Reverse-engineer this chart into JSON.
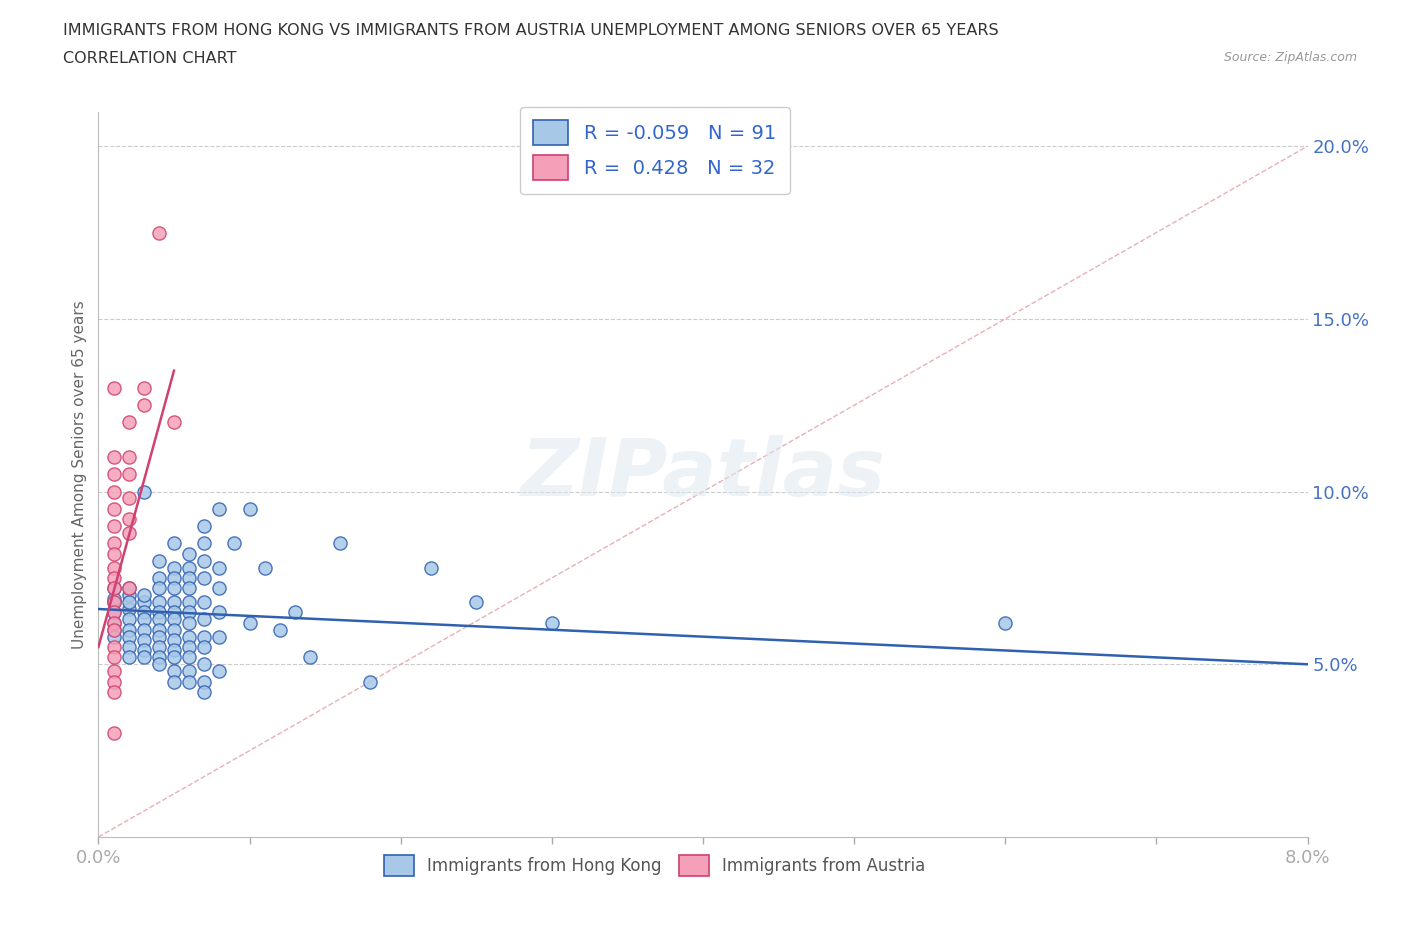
{
  "title_line1": "IMMIGRANTS FROM HONG KONG VS IMMIGRANTS FROM AUSTRIA UNEMPLOYMENT AMONG SENIORS OVER 65 YEARS",
  "title_line2": "CORRELATION CHART",
  "source_text": "Source: ZipAtlas.com",
  "ylabel": "Unemployment Among Seniors over 65 years",
  "xlim": [
    0.0,
    0.08
  ],
  "ylim": [
    0.0,
    0.21
  ],
  "x_ticks": [
    0.0,
    0.01,
    0.02,
    0.03,
    0.04,
    0.05,
    0.06,
    0.07,
    0.08
  ],
  "y_ticks": [
    0.05,
    0.1,
    0.15,
    0.2
  ],
  "y_tick_labels": [
    "5.0%",
    "10.0%",
    "15.0%",
    "20.0%"
  ],
  "color_hk": "#a8c8e8",
  "color_austria": "#f4a0b8",
  "line_color_hk": "#3060b0",
  "line_color_austria": "#d04070",
  "R_hk": -0.059,
  "N_hk": 91,
  "R_austria": 0.428,
  "N_austria": 32,
  "watermark": "ZIPatlas",
  "hk_trend": [
    0.0,
    0.08,
    0.066,
    0.05
  ],
  "austria_trend": [
    0.0,
    0.005,
    0.055,
    0.135
  ],
  "hk_scatter": [
    [
      0.001,
      0.065
    ],
    [
      0.001,
      0.068
    ],
    [
      0.001,
      0.062
    ],
    [
      0.001,
      0.06
    ],
    [
      0.001,
      0.058
    ],
    [
      0.001,
      0.072
    ],
    [
      0.001,
      0.069
    ],
    [
      0.002,
      0.07
    ],
    [
      0.002,
      0.066
    ],
    [
      0.002,
      0.063
    ],
    [
      0.002,
      0.06
    ],
    [
      0.002,
      0.058
    ],
    [
      0.002,
      0.055
    ],
    [
      0.002,
      0.052
    ],
    [
      0.002,
      0.068
    ],
    [
      0.002,
      0.072
    ],
    [
      0.003,
      0.1
    ],
    [
      0.003,
      0.068
    ],
    [
      0.003,
      0.065
    ],
    [
      0.003,
      0.063
    ],
    [
      0.003,
      0.06
    ],
    [
      0.003,
      0.057
    ],
    [
      0.003,
      0.054
    ],
    [
      0.003,
      0.052
    ],
    [
      0.003,
      0.07
    ],
    [
      0.004,
      0.08
    ],
    [
      0.004,
      0.075
    ],
    [
      0.004,
      0.072
    ],
    [
      0.004,
      0.068
    ],
    [
      0.004,
      0.065
    ],
    [
      0.004,
      0.063
    ],
    [
      0.004,
      0.06
    ],
    [
      0.004,
      0.058
    ],
    [
      0.004,
      0.055
    ],
    [
      0.004,
      0.052
    ],
    [
      0.004,
      0.05
    ],
    [
      0.005,
      0.085
    ],
    [
      0.005,
      0.078
    ],
    [
      0.005,
      0.075
    ],
    [
      0.005,
      0.072
    ],
    [
      0.005,
      0.068
    ],
    [
      0.005,
      0.065
    ],
    [
      0.005,
      0.063
    ],
    [
      0.005,
      0.06
    ],
    [
      0.005,
      0.057
    ],
    [
      0.005,
      0.054
    ],
    [
      0.005,
      0.052
    ],
    [
      0.005,
      0.048
    ],
    [
      0.005,
      0.045
    ],
    [
      0.006,
      0.082
    ],
    [
      0.006,
      0.078
    ],
    [
      0.006,
      0.075
    ],
    [
      0.006,
      0.072
    ],
    [
      0.006,
      0.068
    ],
    [
      0.006,
      0.065
    ],
    [
      0.006,
      0.062
    ],
    [
      0.006,
      0.058
    ],
    [
      0.006,
      0.055
    ],
    [
      0.006,
      0.052
    ],
    [
      0.006,
      0.048
    ],
    [
      0.006,
      0.045
    ],
    [
      0.007,
      0.09
    ],
    [
      0.007,
      0.085
    ],
    [
      0.007,
      0.08
    ],
    [
      0.007,
      0.075
    ],
    [
      0.007,
      0.068
    ],
    [
      0.007,
      0.063
    ],
    [
      0.007,
      0.058
    ],
    [
      0.007,
      0.055
    ],
    [
      0.007,
      0.05
    ],
    [
      0.007,
      0.045
    ],
    [
      0.007,
      0.042
    ],
    [
      0.008,
      0.095
    ],
    [
      0.008,
      0.078
    ],
    [
      0.008,
      0.072
    ],
    [
      0.008,
      0.065
    ],
    [
      0.008,
      0.058
    ],
    [
      0.008,
      0.048
    ],
    [
      0.009,
      0.085
    ],
    [
      0.01,
      0.095
    ],
    [
      0.01,
      0.062
    ],
    [
      0.011,
      0.078
    ],
    [
      0.012,
      0.06
    ],
    [
      0.013,
      0.065
    ],
    [
      0.014,
      0.052
    ],
    [
      0.016,
      0.085
    ],
    [
      0.018,
      0.045
    ],
    [
      0.022,
      0.078
    ],
    [
      0.025,
      0.068
    ],
    [
      0.03,
      0.062
    ],
    [
      0.06,
      0.062
    ]
  ],
  "austria_scatter": [
    [
      0.001,
      0.13
    ],
    [
      0.001,
      0.11
    ],
    [
      0.001,
      0.105
    ],
    [
      0.001,
      0.1
    ],
    [
      0.001,
      0.095
    ],
    [
      0.001,
      0.09
    ],
    [
      0.001,
      0.085
    ],
    [
      0.001,
      0.082
    ],
    [
      0.001,
      0.078
    ],
    [
      0.001,
      0.075
    ],
    [
      0.001,
      0.072
    ],
    [
      0.001,
      0.068
    ],
    [
      0.001,
      0.065
    ],
    [
      0.001,
      0.062
    ],
    [
      0.001,
      0.06
    ],
    [
      0.001,
      0.055
    ],
    [
      0.001,
      0.052
    ],
    [
      0.001,
      0.048
    ],
    [
      0.001,
      0.045
    ],
    [
      0.001,
      0.042
    ],
    [
      0.001,
      0.03
    ],
    [
      0.002,
      0.12
    ],
    [
      0.002,
      0.11
    ],
    [
      0.002,
      0.105
    ],
    [
      0.002,
      0.098
    ],
    [
      0.002,
      0.092
    ],
    [
      0.002,
      0.088
    ],
    [
      0.002,
      0.072
    ],
    [
      0.003,
      0.125
    ],
    [
      0.003,
      0.13
    ],
    [
      0.004,
      0.175
    ],
    [
      0.005,
      0.12
    ]
  ]
}
